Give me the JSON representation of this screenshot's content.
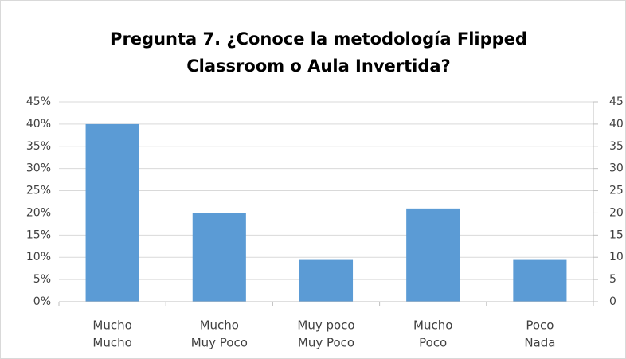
{
  "chart_data": {
    "type": "bar",
    "title": [
      "Pregunta 7. ¿Conoce la metodología Flipped",
      "Classroom o Aula Invertida?"
    ],
    "categories": [
      [
        "Mucho",
        "Mucho"
      ],
      [
        "Mucho",
        "Muy Poco"
      ],
      [
        "Muy poco",
        "Muy Poco"
      ],
      [
        "Mucho",
        "Poco"
      ],
      [
        "Poco",
        "Nada"
      ]
    ],
    "values": [
      40,
      20,
      9.4,
      21,
      9.4
    ],
    "color": "#5b9bd5",
    "ylim": [
      0,
      45
    ],
    "yticks": [
      {
        "value": 0,
        "label": "0%"
      },
      {
        "value": 5,
        "label": "5%"
      },
      {
        "value": 10,
        "label": "10%"
      },
      {
        "value": 15,
        "label": "15%"
      },
      {
        "value": 20,
        "label": "20%"
      },
      {
        "value": 25,
        "label": "25%"
      },
      {
        "value": 30,
        "label": "30%"
      },
      {
        "value": 35,
        "label": "35%"
      },
      {
        "value": 40,
        "label": "40%"
      },
      {
        "value": 45,
        "label": "45%"
      }
    ],
    "y2lim": [
      0,
      45
    ],
    "y2ticks": [
      0,
      5,
      10,
      15,
      20,
      25,
      30,
      35,
      40,
      45
    ],
    "grid": true
  }
}
